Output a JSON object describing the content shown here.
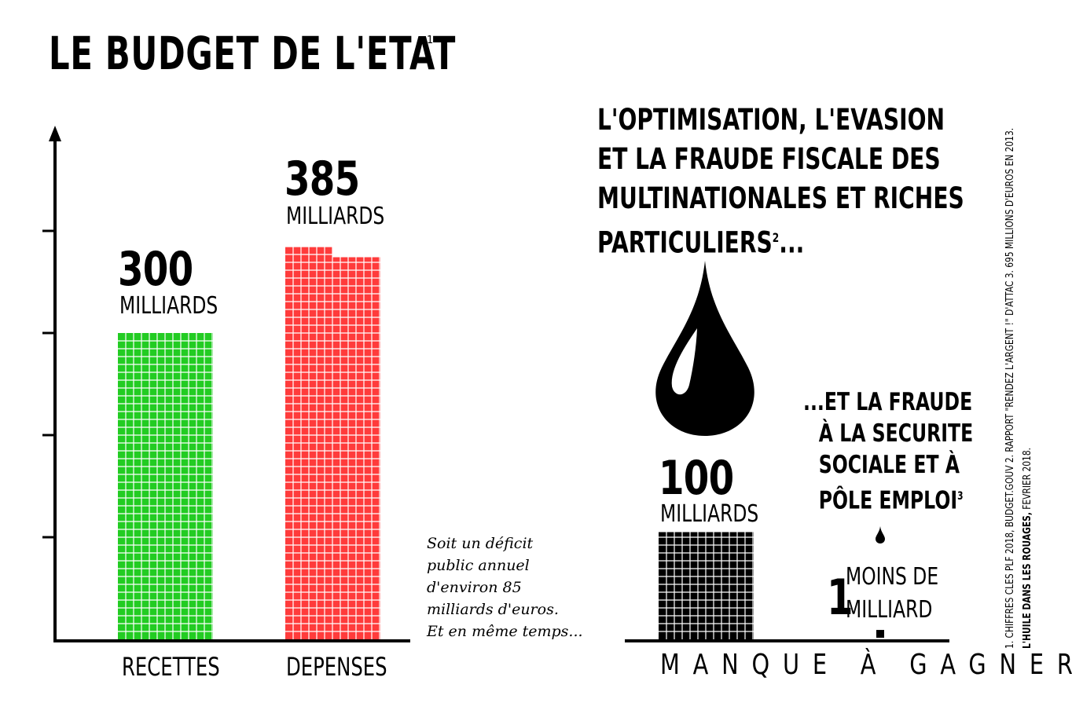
{
  "title": "LE BUDGET DE L'ETAT",
  "title_note": "1",
  "headline": {
    "lines": [
      "L'OPTIMISATION, L'EVASION",
      "ET LA FRAUDE FISCALE DES",
      "MULTINATIONALES ET RICHES",
      "PARTICULIERS"
    ],
    "note": "2",
    "ellipsis": "..."
  },
  "deficit_text": [
    "Soit un déficit",
    "public annuel",
    "d'environ 85",
    "milliards d'euros.",
    "Et en même temps..."
  ],
  "fraude_text": {
    "lines": [
      "...ET LA FRAUDE",
      "À LA SECURITE",
      "SOCIALE ET À",
      "PÔLE EMPLOI"
    ],
    "note": "3"
  },
  "manque_label": "MANQUE À GAGNER",
  "footnotes": {
    "line1": "1. CHIFFRES CLES PLF 2018, BUDGET.GOUV    2. RAPPORT \"RENDEZ L'ARGENT !\" D'ATTAC    3. 695 MILLIONS D'EUROS EN 2013.",
    "line2_bold": "L'HUILE DANS LES ROUAGES,",
    "line2_rest": " FEVRIER 2018."
  },
  "icons": [
    "oil-drop-icon",
    "small-oil-drop-icon"
  ],
  "colors": {
    "recettes": "#22cc22",
    "depenses": "#ff3b3b",
    "manque": "#000000",
    "grid_line": "#ffffff",
    "text": "#000000"
  },
  "chart_data": [
    {
      "type": "bar",
      "categories": [
        "RECETTES",
        "DEPENSES"
      ],
      "values": [
        300,
        385
      ],
      "value_labels": [
        "300",
        "385"
      ],
      "unit_label": "MILLIARDS",
      "ylim": [
        0,
        500
      ],
      "y_ticks": [
        100,
        200,
        300,
        400
      ],
      "grid": false
    },
    {
      "type": "bar",
      "categories": [
        "OPTIMISATION / EVASION / FRAUDE FISCALE",
        "FRAUDE SECURITE SOCIALE / PÔLE EMPLOI"
      ],
      "values": [
        100,
        0.695
      ],
      "value_labels": [
        "100",
        "1"
      ],
      "unit_labels": [
        "MILLIARDS",
        "MOINS DE MILLIARD"
      ],
      "xlabel": "MANQUE À GAGNER"
    }
  ]
}
